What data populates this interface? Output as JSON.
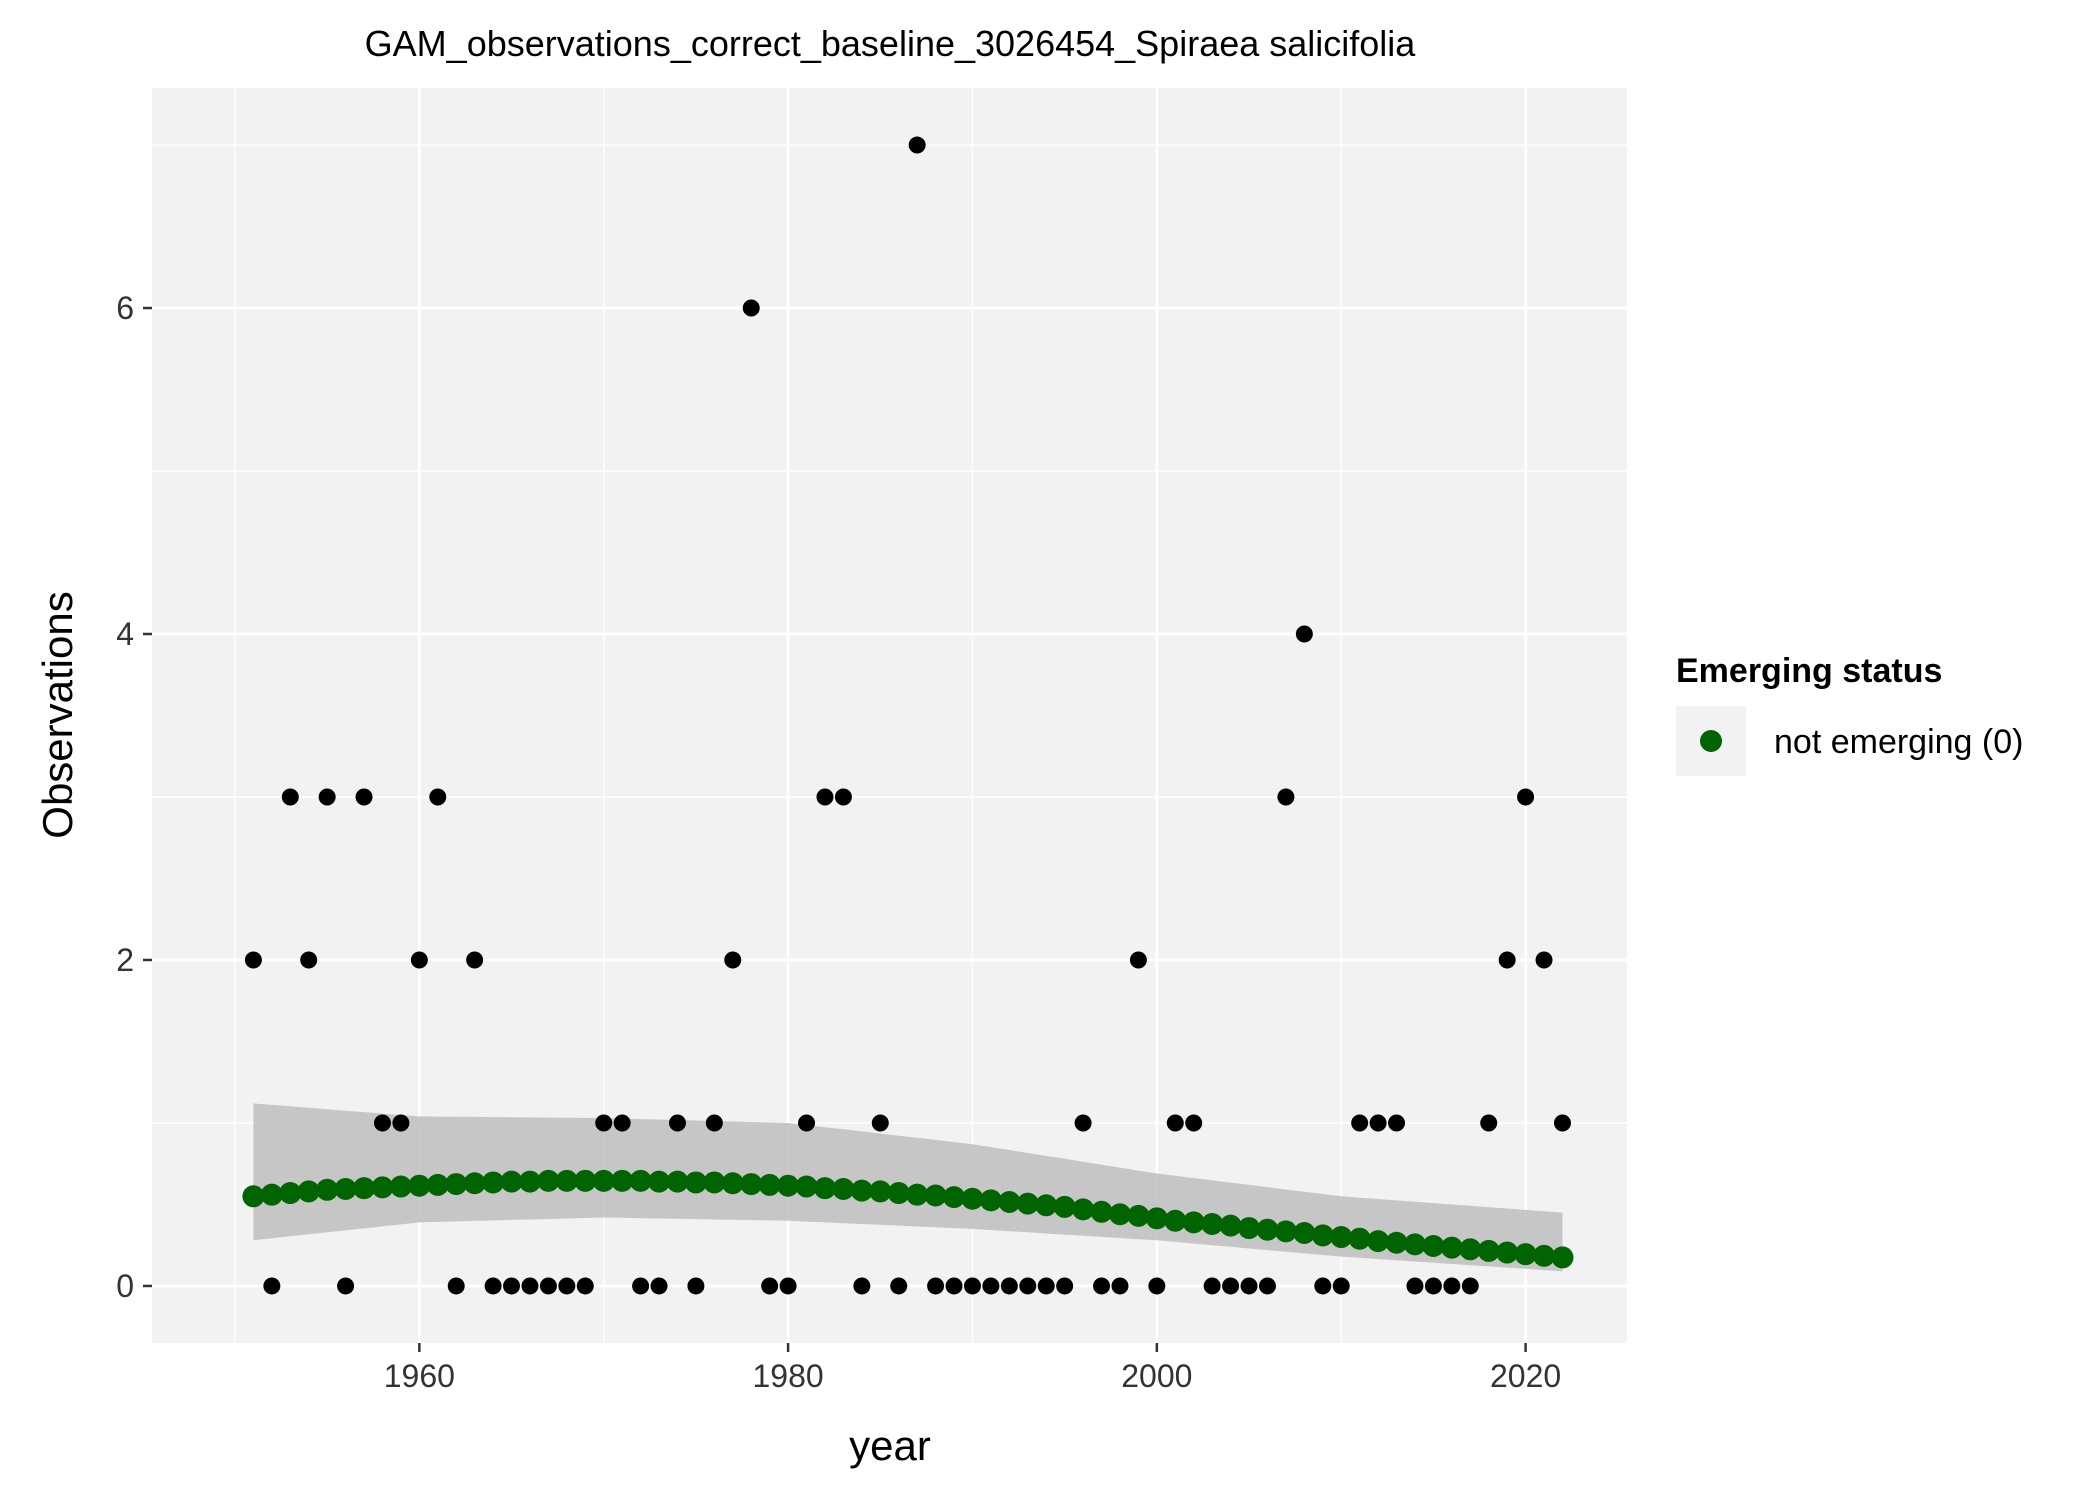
{
  "chart_data": {
    "type": "scatter",
    "title": "GAM_observations_correct_baseline_3026454_Spiraea salicifolia",
    "xlabel": "year",
    "ylabel": "Observations",
    "xlim": [
      1945.5,
      2025.5
    ],
    "ylim": [
      -0.35,
      7.35
    ],
    "x_ticks": [
      1960,
      1980,
      2000,
      2020
    ],
    "x_minor_ticks": [
      1950,
      1970,
      1990,
      2010
    ],
    "y_ticks": [
      0,
      2,
      4,
      6
    ],
    "y_minor_ticks": [
      1,
      3,
      5,
      7
    ],
    "grid": true,
    "legend": {
      "title": "Emerging status",
      "position": "right",
      "entries": [
        {
          "label": "not emerging (0)",
          "color": "#006400"
        }
      ]
    },
    "colors": {
      "panel": "#f2f2f2",
      "grid": "#ffffff",
      "observed": "#000000",
      "fitted": "#006400",
      "ribbon": "#bebebe"
    },
    "series": [
      {
        "kind": "observed",
        "x": [
          1951,
          1952,
          1953,
          1954,
          1955,
          1956,
          1957,
          1958,
          1959,
          1960,
          1961,
          1962,
          1963,
          1964,
          1965,
          1966,
          1967,
          1968,
          1969,
          1970,
          1971,
          1972,
          1973,
          1974,
          1975,
          1976,
          1977,
          1978,
          1979,
          1980,
          1981,
          1982,
          1983,
          1984,
          1985,
          1986,
          1987,
          1988,
          1989,
          1990,
          1991,
          1992,
          1993,
          1994,
          1995,
          1996,
          1997,
          1998,
          1999,
          2000,
          2001,
          2002,
          2003,
          2004,
          2005,
          2006,
          2007,
          2008,
          2009,
          2010,
          2011,
          2012,
          2013,
          2014,
          2015,
          2016,
          2017,
          2018,
          2019,
          2020,
          2021,
          2022
        ],
        "y": [
          2,
          0,
          3,
          2,
          3,
          0,
          3,
          1,
          1,
          2,
          3,
          0,
          2,
          0,
          0,
          0,
          0,
          0,
          0,
          1,
          1,
          0,
          0,
          1,
          0,
          1,
          2,
          6,
          0,
          0,
          1,
          3,
          3,
          0,
          1,
          0,
          7,
          0,
          0,
          0,
          0,
          0,
          0,
          0,
          0,
          1,
          0,
          0,
          2,
          0,
          1,
          1,
          0,
          0,
          0,
          0,
          3,
          4,
          0,
          0,
          1,
          1,
          1,
          0,
          0,
          0,
          0,
          1,
          2,
          3,
          2,
          1
        ]
      },
      {
        "kind": "fitted",
        "name": "not emerging (0)",
        "x": [
          1951,
          1952,
          1953,
          1954,
          1955,
          1956,
          1957,
          1958,
          1959,
          1960,
          1961,
          1962,
          1963,
          1964,
          1965,
          1966,
          1967,
          1968,
          1969,
          1970,
          1971,
          1972,
          1973,
          1974,
          1975,
          1976,
          1977,
          1978,
          1979,
          1980,
          1981,
          1982,
          1983,
          1984,
          1985,
          1986,
          1987,
          1988,
          1989,
          1990,
          1991,
          1992,
          1993,
          1994,
          1995,
          1996,
          1997,
          1998,
          1999,
          2000,
          2001,
          2002,
          2003,
          2004,
          2005,
          2006,
          2007,
          2008,
          2009,
          2010,
          2011,
          2012,
          2013,
          2014,
          2015,
          2016,
          2017,
          2018,
          2019,
          2020,
          2021,
          2022
        ],
        "y": [
          0.55,
          0.56,
          0.57,
          0.58,
          0.59,
          0.595,
          0.6,
          0.605,
          0.61,
          0.615,
          0.62,
          0.625,
          0.63,
          0.635,
          0.64,
          0.64,
          0.645,
          0.645,
          0.645,
          0.645,
          0.645,
          0.645,
          0.64,
          0.64,
          0.635,
          0.635,
          0.63,
          0.625,
          0.62,
          0.615,
          0.61,
          0.6,
          0.595,
          0.585,
          0.58,
          0.57,
          0.56,
          0.555,
          0.545,
          0.535,
          0.525,
          0.515,
          0.505,
          0.495,
          0.485,
          0.47,
          0.455,
          0.44,
          0.43,
          0.415,
          0.4,
          0.39,
          0.38,
          0.37,
          0.355,
          0.345,
          0.335,
          0.325,
          0.31,
          0.3,
          0.29,
          0.275,
          0.265,
          0.255,
          0.245,
          0.235,
          0.225,
          0.215,
          0.205,
          0.195,
          0.185,
          0.175
        ],
        "ci_x": [
          1951,
          1960,
          1970,
          1980,
          1990,
          2000,
          2010,
          2022
        ],
        "ci_lower": [
          0.28,
          0.39,
          0.42,
          0.4,
          0.35,
          0.28,
          0.18,
          0.09
        ],
        "ci_upper": [
          1.12,
          1.04,
          1.03,
          1.0,
          0.87,
          0.69,
          0.55,
          0.45
        ]
      }
    ]
  }
}
